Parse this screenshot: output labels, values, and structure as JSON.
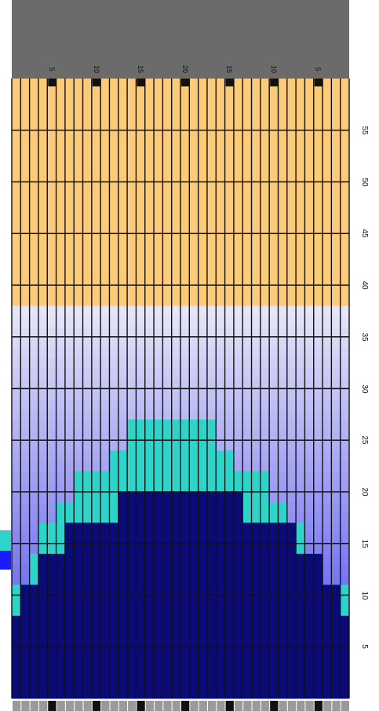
{
  "grid": {
    "columns": 38,
    "rows": 60,
    "colors": {
      "empty": "#fbcb7a",
      "solid": "#0b0b78",
      "surface": "#2ed3c9",
      "sky_top": "#e9e9f8",
      "sky_bottom": "#4848ee",
      "header": "#6b6b6b",
      "line": "#111111",
      "marker": "#111111",
      "footer_cell": "#9a9a9a"
    },
    "sky_top_row": 38,
    "solid_heights": [
      8,
      11,
      11,
      14,
      14,
      14,
      17,
      17,
      17,
      17,
      17,
      17,
      20,
      20,
      20,
      20,
      20,
      20,
      20,
      20,
      20,
      20,
      20,
      20,
      20,
      20,
      17,
      17,
      17,
      17,
      17,
      17,
      14,
      14,
      14,
      11,
      11,
      8
    ],
    "surface_heights": [
      11,
      11,
      14,
      17,
      17,
      19,
      19,
      22,
      22,
      22,
      22,
      24,
      24,
      27,
      27,
      27,
      27,
      27,
      27,
      27,
      27,
      27,
      27,
      24,
      24,
      22,
      22,
      22,
      22,
      19,
      19,
      17,
      17,
      14,
      11,
      11,
      11,
      11
    ],
    "column_labels": [
      "5",
      "10",
      "15",
      "20",
      "15",
      "10",
      "5"
    ],
    "row_labels": [
      "5",
      "10",
      "15",
      "20",
      "25",
      "30",
      "35",
      "40",
      "45",
      "50",
      "55"
    ]
  },
  "side_swatches": {
    "top_color": "#2ed3c9",
    "bottom_color": "#1b1bff"
  }
}
